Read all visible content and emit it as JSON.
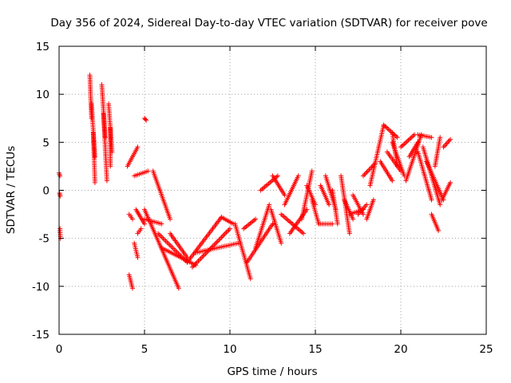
{
  "chart_data": {
    "type": "scatter",
    "title": "Day 356 of 2024, Sidereal Day-to-day VTEC variation (SDTVAR) for receiver pove",
    "xlabel": "GPS time / hours",
    "ylabel": "SDTVAR / TECUs",
    "xlim": [
      0,
      25
    ],
    "ylim": [
      -15,
      15
    ],
    "xticks": [
      0,
      5,
      10,
      15,
      20,
      25
    ],
    "xtick_labels": [
      "0",
      "5",
      "10",
      "15",
      "20",
      "25"
    ],
    "yticks": [
      -15,
      -10,
      -5,
      0,
      5,
      10,
      15
    ],
    "ytick_labels": [
      "-15",
      "-10",
      "-5",
      "0",
      "5",
      "10",
      "15"
    ],
    "grid": true,
    "marker": "+",
    "color": "#ff0000",
    "series": [
      {
        "name": "SDTVAR",
        "segments": [
          {
            "x0": 0.0,
            "y0": 1.8,
            "x1": 0.05,
            "y1": 1.5
          },
          {
            "x0": 0.03,
            "y0": -0.3,
            "x1": 0.06,
            "y1": -0.6
          },
          {
            "x0": 0.05,
            "y0": -4.0,
            "x1": 0.08,
            "y1": -5.0
          },
          {
            "x0": 1.8,
            "y0": 12.0,
            "x1": 1.9,
            "y1": 7.5
          },
          {
            "x0": 1.9,
            "y0": 9.0,
            "x1": 2.1,
            "y1": 3.5
          },
          {
            "x0": 2.0,
            "y0": 6.0,
            "x1": 2.1,
            "y1": 0.8
          },
          {
            "x0": 2.5,
            "y0": 11.0,
            "x1": 2.7,
            "y1": 5.5
          },
          {
            "x0": 2.6,
            "y0": 8.0,
            "x1": 2.8,
            "y1": 1.0
          },
          {
            "x0": 2.9,
            "y0": 9.0,
            "x1": 3.1,
            "y1": 4.0
          },
          {
            "x0": 3.0,
            "y0": 6.5,
            "x1": 3.0,
            "y1": 2.5
          },
          {
            "x0": 4.0,
            "y0": 2.5,
            "x1": 4.6,
            "y1": 4.5
          },
          {
            "x0": 4.1,
            "y0": -2.5,
            "x1": 4.3,
            "y1": -3.0
          },
          {
            "x0": 4.1,
            "y0": -8.8,
            "x1": 4.3,
            "y1": -10.2
          },
          {
            "x0": 4.4,
            "y0": -5.5,
            "x1": 4.6,
            "y1": -7.0
          },
          {
            "x0": 4.5,
            "y0": -2.0,
            "x1": 5.0,
            "y1": -3.5
          },
          {
            "x0": 4.6,
            "y0": -4.5,
            "x1": 4.8,
            "y1": -4.0
          },
          {
            "x0": 5.0,
            "y0": 7.5,
            "x1": 5.1,
            "y1": 7.3
          },
          {
            "x0": 4.4,
            "y0": 1.5,
            "x1": 5.2,
            "y1": 2.0
          },
          {
            "x0": 5.0,
            "y0": -2.0,
            "x1": 7.0,
            "y1": -10.2
          },
          {
            "x0": 5.5,
            "y0": 2.0,
            "x1": 6.5,
            "y1": -3.0
          },
          {
            "x0": 5.0,
            "y0": -3.0,
            "x1": 6.0,
            "y1": -3.5
          },
          {
            "x0": 5.8,
            "y0": -4.5,
            "x1": 7.5,
            "y1": -7.5
          },
          {
            "x0": 6.0,
            "y0": -6.0,
            "x1": 8.0,
            "y1": -7.8
          },
          {
            "x0": 6.5,
            "y0": -4.5,
            "x1": 7.5,
            "y1": -7.0
          },
          {
            "x0": 7.5,
            "y0": -7.5,
            "x1": 9.5,
            "y1": -2.8
          },
          {
            "x0": 7.8,
            "y0": -8.0,
            "x1": 10.0,
            "y1": -4.0
          },
          {
            "x0": 8.0,
            "y0": -6.5,
            "x1": 10.5,
            "y1": -5.5
          },
          {
            "x0": 9.5,
            "y0": -2.8,
            "x1": 10.2,
            "y1": -3.5
          },
          {
            "x0": 10.3,
            "y0": -3.5,
            "x1": 11.2,
            "y1": -9.2
          },
          {
            "x0": 10.8,
            "y0": -4.0,
            "x1": 11.5,
            "y1": -3.0
          },
          {
            "x0": 11.0,
            "y0": -7.5,
            "x1": 12.5,
            "y1": -3.5
          },
          {
            "x0": 11.5,
            "y0": -6.0,
            "x1": 12.3,
            "y1": -1.5
          },
          {
            "x0": 11.8,
            "y0": 0.0,
            "x1": 12.8,
            "y1": 1.5
          },
          {
            "x0": 12.4,
            "y0": -2.0,
            "x1": 13.0,
            "y1": -5.5
          },
          {
            "x0": 12.5,
            "y0": 1.5,
            "x1": 13.2,
            "y1": -0.5
          },
          {
            "x0": 13.0,
            "y0": -2.5,
            "x1": 14.3,
            "y1": -4.5
          },
          {
            "x0": 13.2,
            "y0": -1.5,
            "x1": 14.0,
            "y1": 1.5
          },
          {
            "x0": 13.5,
            "y0": -4.5,
            "x1": 14.5,
            "y1": -2.0
          },
          {
            "x0": 14.2,
            "y0": -3.0,
            "x1": 14.8,
            "y1": 2.0
          },
          {
            "x0": 14.5,
            "y0": 0.5,
            "x1": 15.0,
            "y1": -1.5
          },
          {
            "x0": 14.8,
            "y0": -1.0,
            "x1": 15.2,
            "y1": -3.5
          },
          {
            "x0": 15.2,
            "y0": -3.5,
            "x1": 16.0,
            "y1": -3.5
          },
          {
            "x0": 15.3,
            "y0": 0.5,
            "x1": 15.8,
            "y1": -1.5
          },
          {
            "x0": 15.6,
            "y0": 1.5,
            "x1": 16.2,
            "y1": -2.0
          },
          {
            "x0": 16.0,
            "y0": 0.0,
            "x1": 16.3,
            "y1": -3.5
          },
          {
            "x0": 16.5,
            "y0": 1.5,
            "x1": 17.0,
            "y1": -4.5
          },
          {
            "x0": 16.7,
            "y0": -1.0,
            "x1": 17.2,
            "y1": -3.0
          },
          {
            "x0": 17.0,
            "y0": -2.5,
            "x1": 17.8,
            "y1": -2.0
          },
          {
            "x0": 17.2,
            "y0": -0.5,
            "x1": 17.8,
            "y1": -2.5
          },
          {
            "x0": 17.5,
            "y0": -2.5,
            "x1": 18.0,
            "y1": -1.5
          },
          {
            "x0": 17.8,
            "y0": 1.5,
            "x1": 18.5,
            "y1": 2.8
          },
          {
            "x0": 18.0,
            "y0": -3.0,
            "x1": 18.4,
            "y1": -1.0
          },
          {
            "x0": 18.2,
            "y0": 0.5,
            "x1": 19.0,
            "y1": 6.8
          },
          {
            "x0": 18.8,
            "y0": 3.0,
            "x1": 19.5,
            "y1": 1.0
          },
          {
            "x0": 19.0,
            "y0": 6.8,
            "x1": 19.8,
            "y1": 5.5
          },
          {
            "x0": 19.5,
            "y0": 5.0,
            "x1": 20.2,
            "y1": 1.5
          },
          {
            "x0": 19.2,
            "y0": 4.0,
            "x1": 20.0,
            "y1": 2.0
          },
          {
            "x0": 19.5,
            "y0": 6.0,
            "x1": 19.8,
            "y1": 2.5
          },
          {
            "x0": 20.0,
            "y0": 4.5,
            "x1": 20.8,
            "y1": 5.8
          },
          {
            "x0": 20.3,
            "y0": 1.0,
            "x1": 21.2,
            "y1": 5.8
          },
          {
            "x0": 20.5,
            "y0": 3.5,
            "x1": 21.0,
            "y1": 5.0
          },
          {
            "x0": 21.0,
            "y0": 5.8,
            "x1": 21.8,
            "y1": 5.5
          },
          {
            "x0": 21.0,
            "y0": 4.0,
            "x1": 21.8,
            "y1": -1.0
          },
          {
            "x0": 21.3,
            "y0": 4.5,
            "x1": 22.3,
            "y1": -1.5
          },
          {
            "x0": 21.5,
            "y0": 3.0,
            "x1": 22.5,
            "y1": -1.0
          },
          {
            "x0": 21.8,
            "y0": -2.5,
            "x1": 22.2,
            "y1": -4.2
          },
          {
            "x0": 22.0,
            "y0": 2.5,
            "x1": 22.3,
            "y1": 5.5
          },
          {
            "x0": 22.5,
            "y0": 4.5,
            "x1": 22.9,
            "y1": 5.3
          },
          {
            "x0": 22.4,
            "y0": -1.0,
            "x1": 22.9,
            "y1": 0.8
          }
        ]
      }
    ]
  }
}
